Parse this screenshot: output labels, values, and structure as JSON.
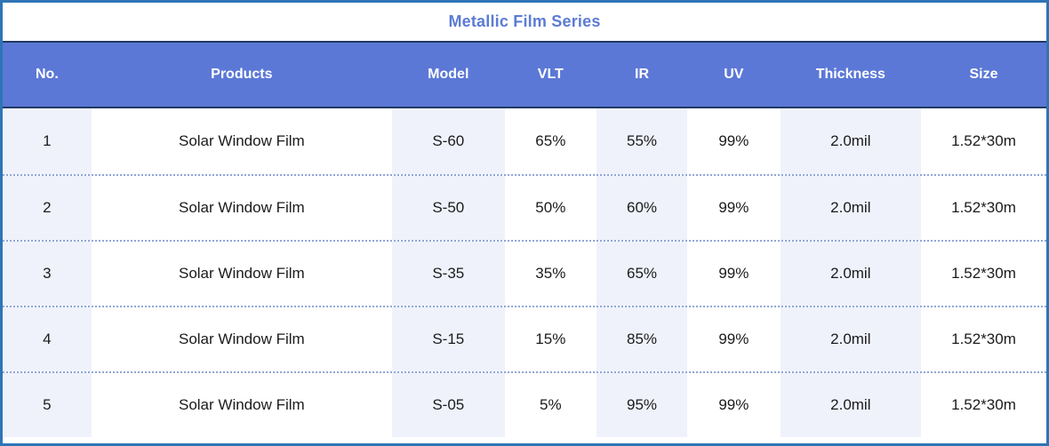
{
  "title": "Metallic Film Series",
  "table": {
    "columns": [
      {
        "key": "no",
        "label": "No."
      },
      {
        "key": "products",
        "label": "Products"
      },
      {
        "key": "model",
        "label": "Model"
      },
      {
        "key": "vlt",
        "label": "VLT"
      },
      {
        "key": "ir",
        "label": "IR"
      },
      {
        "key": "uv",
        "label": "UV"
      },
      {
        "key": "thickness",
        "label": "Thickness"
      },
      {
        "key": "size",
        "label": "Size"
      }
    ],
    "rows": [
      {
        "cells": [
          "1",
          "Solar Window Film",
          "S-60",
          "65%",
          "55%",
          "99%",
          "2.0mil",
          "1.52*30m"
        ]
      },
      {
        "cells": [
          "2",
          "Solar Window Film",
          "S-50",
          "50%",
          "60%",
          "99%",
          "2.0mil",
          "1.52*30m"
        ]
      },
      {
        "cells": [
          "3",
          "Solar Window Film",
          "S-35",
          "35%",
          "65%",
          "99%",
          "2.0mil",
          "1.52*30m"
        ]
      },
      {
        "cells": [
          "4",
          "Solar Window Film",
          "S-15",
          "15%",
          "85%",
          "99%",
          "2.0mil",
          "1.52*30m"
        ]
      },
      {
        "cells": [
          "5",
          "Solar Window Film",
          "S-05",
          "5%",
          "95%",
          "99%",
          "2.0mil",
          "1.52*30m"
        ]
      }
    ]
  },
  "colors": {
    "outer_border": "#2E75B6",
    "header_bg": "#5C78D6",
    "header_text": "#FFFFFF",
    "title_text": "#5B7BD5",
    "rule": "#1F3864",
    "stripe_bg": "#EFF2FB",
    "row_divider": "#8FA6D9",
    "cell_text": "#1B1B1B"
  }
}
